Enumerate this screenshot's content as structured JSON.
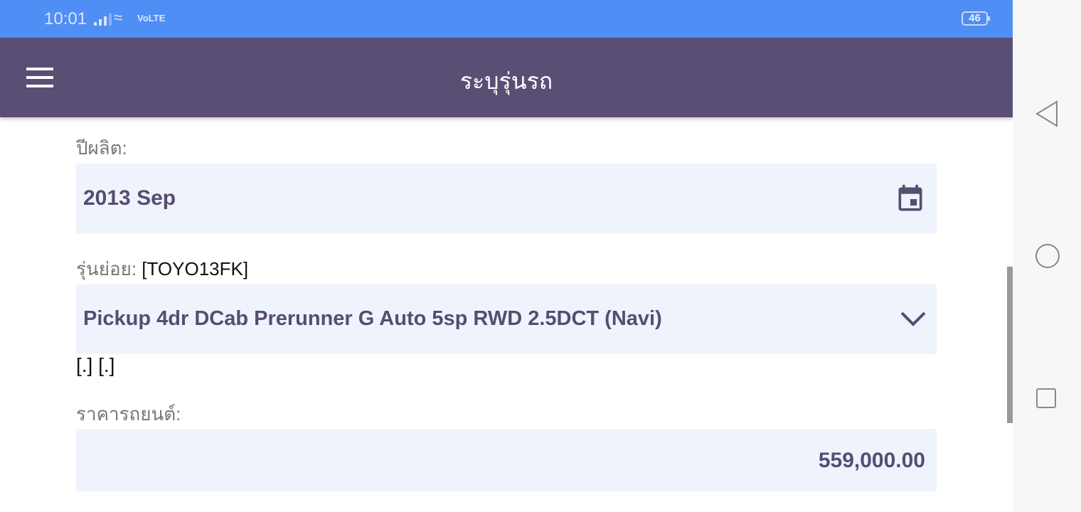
{
  "status_bar": {
    "time": "10:01",
    "network": "VoLTE",
    "battery": "46"
  },
  "app_bar": {
    "title": "ระบุรุ่นรถ",
    "menu_icon": "hamburger-icon"
  },
  "form": {
    "year_label": "ปีผลิต:",
    "year_value": "2013 Sep",
    "year_icon": "calendar-icon",
    "submodel_label": "รุ่นย่อย:",
    "submodel_code": "[TOYO13FK]",
    "submodel_value": "Pickup 4dr DCab Prerunner G Auto 5sp RWD 2.5DCT (Navi)",
    "submodel_icon": "chevron-down-icon",
    "note": "[.] [.]",
    "price_label": "ราคารถยนต์:",
    "price_value": "559,000.00"
  },
  "colors": {
    "status": "#4f8ef5",
    "appbar": "#5a4e74",
    "field_bg": "#eff3fc",
    "field_text": "#564d72"
  }
}
